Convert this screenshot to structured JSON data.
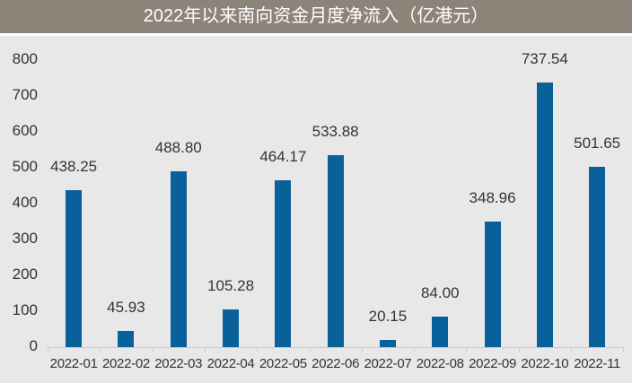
{
  "header": {
    "title": "2022年以来南向资金月度净流入（亿港元）"
  },
  "colors": {
    "header_bg": "#8d8479",
    "plot_bg": "#e8e8e8",
    "bar": "#08619a"
  },
  "chart_data": {
    "type": "bar",
    "title": "2022年以来南向资金月度净流入（亿港元）",
    "xlabel": "",
    "ylabel": "",
    "ylim": [
      0,
      800
    ],
    "yticks": [
      "0",
      "100",
      "200",
      "300",
      "400",
      "500",
      "600",
      "700",
      "800"
    ],
    "grid": false,
    "legend": null,
    "categories": [
      "2022-01",
      "2022-02",
      "2022-03",
      "2022-04",
      "2022-05",
      "2022-06",
      "2022-07",
      "2022-08",
      "2022-09",
      "2022-10",
      "2022-11"
    ],
    "values": [
      438.25,
      45.93,
      488.8,
      105.28,
      464.17,
      533.88,
      20.15,
      84.0,
      348.96,
      737.54,
      501.65
    ],
    "value_labels": [
      "438.25",
      "45.93",
      "488.80",
      "105.28",
      "464.17",
      "533.88",
      "20.15",
      "84.00",
      "348.96",
      "737.54",
      "501.65"
    ]
  }
}
